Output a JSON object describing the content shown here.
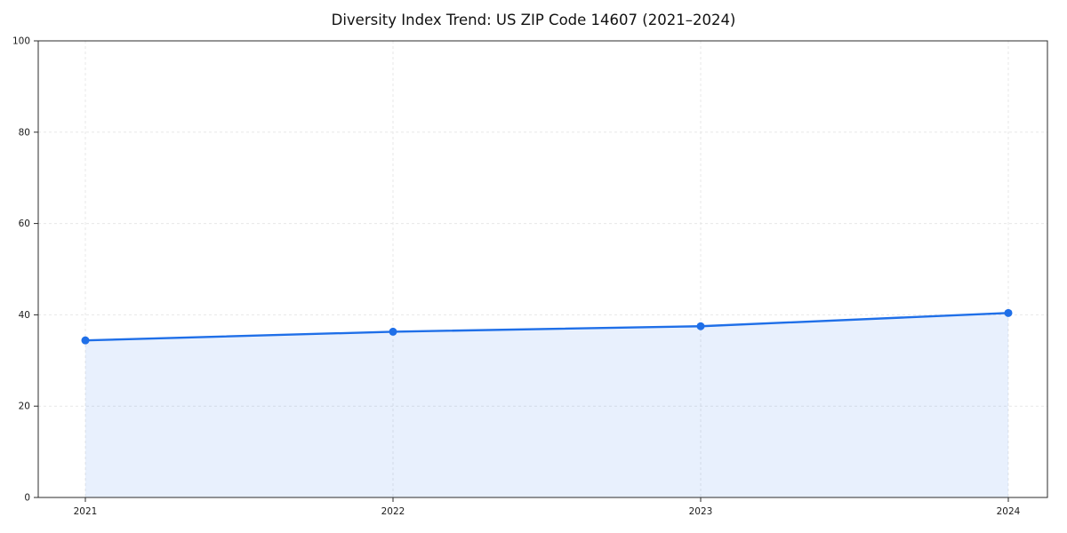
{
  "chart_data": {
    "type": "line",
    "title": "Diversity Index Trend: US ZIP Code 14607 (2021–2024)",
    "x": [
      "2021",
      "2022",
      "2023",
      "2024"
    ],
    "series": [
      {
        "name": "Diversity Index",
        "values": [
          34.4,
          36.3,
          37.5,
          40.4
        ]
      }
    ],
    "xlabel": "",
    "ylabel": "",
    "ylim": [
      0,
      100
    ],
    "yticks": [
      0,
      20,
      40,
      60,
      80,
      100
    ],
    "grid": "dashed-both-axes",
    "legend": "none",
    "area_fill": true,
    "marker": "circle",
    "line_color": "#1f6fe8",
    "fill_color": "rgba(31, 111, 232, 0.10)",
    "grid_color": "#e7e7e7",
    "axis_color": "#2b2b2b",
    "tick_label_color": "#1a1a1a"
  }
}
